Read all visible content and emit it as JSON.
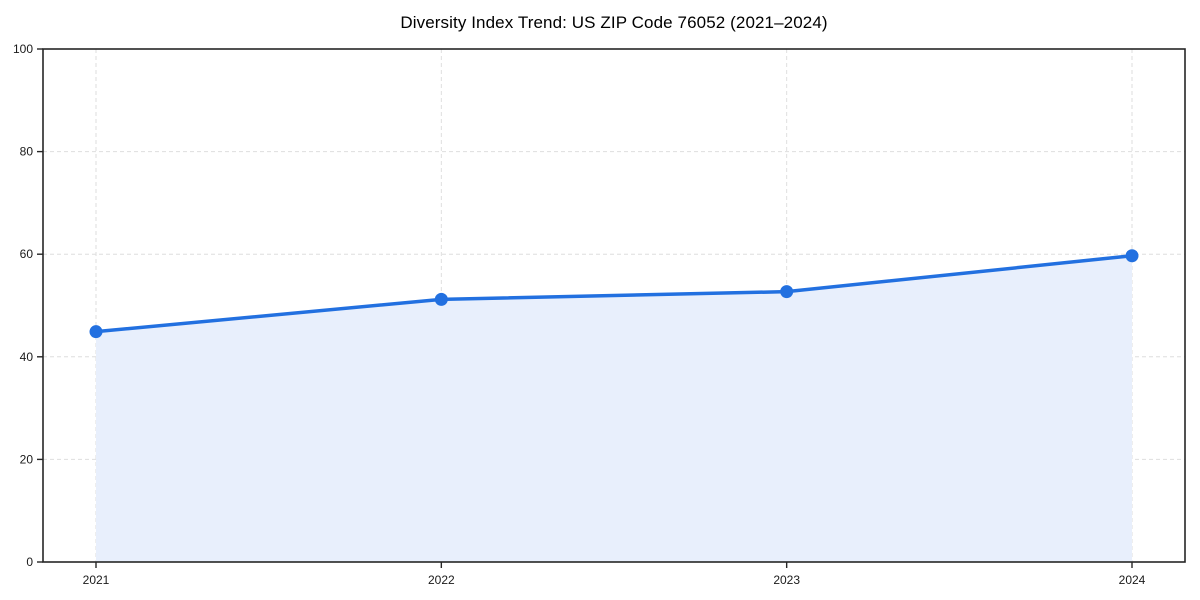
{
  "window": {
    "background": "#ffffff"
  },
  "chart_data": {
    "type": "area",
    "title": "Diversity Index Trend: US ZIP Code 76052 (2021–2024)",
    "x_labels": [
      "2021",
      "2022",
      "2023",
      "2024"
    ],
    "series": [
      {
        "name": "Diversity Index",
        "values": [
          44.9,
          51.2,
          52.7,
          59.7
        ]
      }
    ],
    "xlabel": "",
    "ylabel": "",
    "ylim": [
      0,
      100
    ],
    "yticks": [
      0,
      20,
      40,
      60,
      80,
      100
    ],
    "grid": {
      "visible": true,
      "style": "dashed",
      "color": "#dedede",
      "orientation": "both"
    },
    "legend": "none",
    "colors": {
      "line": "#2270e0",
      "marker": "#2270e0",
      "fill": "#e8effc",
      "spine": "#262626",
      "tick_label": "#1a1a1a",
      "title": "#000000"
    }
  }
}
